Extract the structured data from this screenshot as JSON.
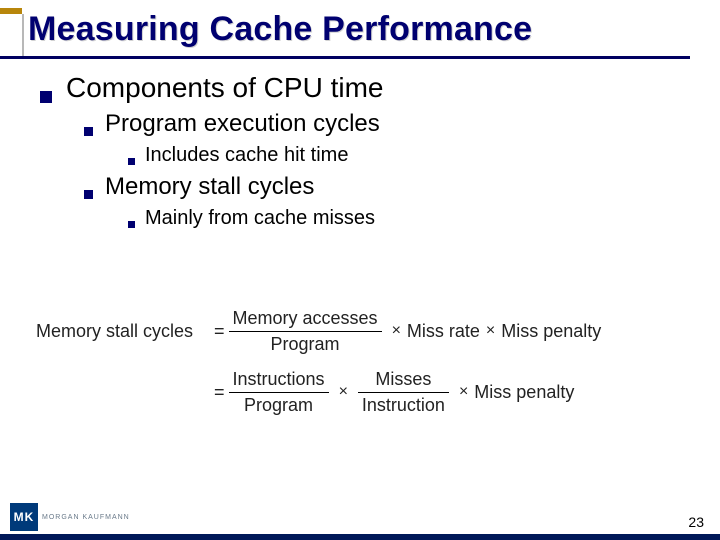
{
  "colors": {
    "heading": "#000070",
    "bullet": "#000070",
    "rule_dark": "#000060",
    "rule_accent": "#b8860b",
    "body_text": "#000000",
    "formula_text": "#222222",
    "footer_bar": "#001858",
    "logo_bg": "#003a7a",
    "logo_text": "#6a7a8a",
    "background": "#ffffff"
  },
  "fonts": {
    "title_size_pt": 26,
    "lvl1_size_pt": 21,
    "lvl2_size_pt": 18,
    "lvl3_size_pt": 15,
    "formula_size_pt": 14
  },
  "title": "Measuring Cache Performance",
  "bullets": {
    "l1": "Components of CPU time",
    "l2a": "Program execution cycles",
    "l3a": "Includes cache hit time",
    "l2b": "Memory stall cycles",
    "l3b": "Mainly from cache misses"
  },
  "formula": {
    "lhs": "Memory stall cycles",
    "eq": "=",
    "frac1": {
      "num": "Memory accesses",
      "den": "Program"
    },
    "t1": "Miss rate",
    "t2": "Miss penalty",
    "frac2": {
      "num": "Instructions",
      "den": "Program"
    },
    "frac3": {
      "num": "Misses",
      "den": "Instruction"
    },
    "t3": "Miss penalty",
    "times": "×"
  },
  "page_number": "23",
  "logo": {
    "mark": "MK",
    "text": "MORGAN KAUFMANN"
  }
}
